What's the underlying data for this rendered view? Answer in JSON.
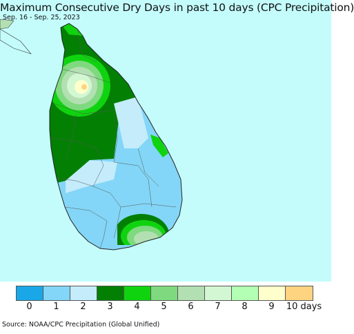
{
  "title": "Maximum Consecutive Dry Days in past 10 days (CPC Precipitation)",
  "subtitle": "Sep. 16 - Sep. 25, 2023",
  "source": "Source: NOAA/CPC Precipitation (Global Unified)",
  "legend": {
    "unit_label": "10 days",
    "items": [
      {
        "label": "0",
        "color": "#1aa7e8"
      },
      {
        "label": "1",
        "color": "#83d6f7"
      },
      {
        "label": "2",
        "color": "#c4ecfb"
      },
      {
        "label": "3",
        "color": "#038003"
      },
      {
        "label": "4",
        "color": "#10d310"
      },
      {
        "label": "5",
        "color": "#7fd97f"
      },
      {
        "label": "6",
        "color": "#b2e0b2"
      },
      {
        "label": "7",
        "color": "#d3f7d3"
      },
      {
        "label": "8",
        "color": "#b3ffb3"
      },
      {
        "label": "9",
        "color": "#ffffcc"
      },
      {
        "label": "",
        "color": "#ffd480"
      }
    ]
  },
  "map": {
    "ocean_color": "#c4fcfc",
    "region": "Sri Lanka"
  }
}
